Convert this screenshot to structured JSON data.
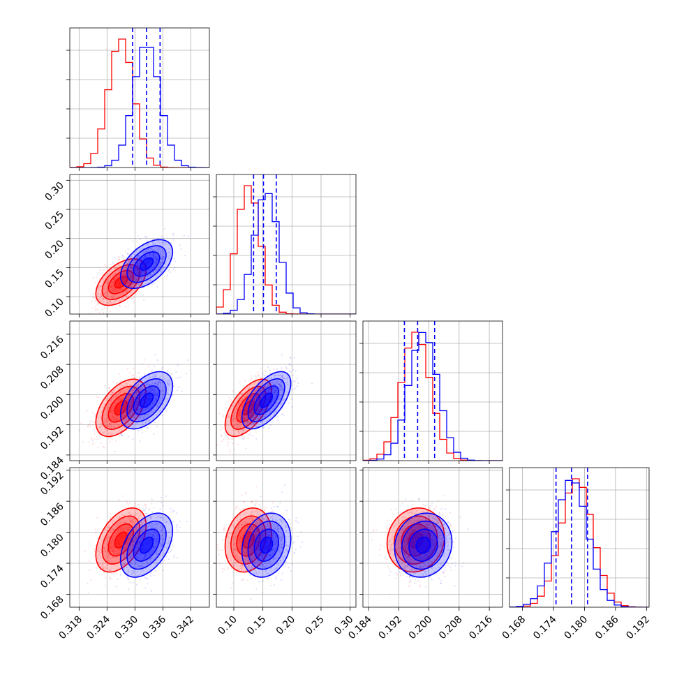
{
  "chart_data": {
    "type": "corner",
    "colors": {
      "set_a": "#0000ff",
      "set_b": "#ff0000"
    },
    "params": [
      {
        "range": [
          0.316,
          0.346
        ],
        "ticks": [
          0.318,
          0.324,
          0.33,
          0.336,
          0.342
        ],
        "tick_labels": [
          "0.318",
          "0.324",
          "0.330",
          "0.336",
          "0.342"
        ]
      },
      {
        "range": [
          0.07,
          0.31
        ],
        "ticks": [
          0.1,
          0.15,
          0.2,
          0.25,
          0.3
        ],
        "tick_labels": [
          "0.10",
          "0.15",
          "0.20",
          "0.25",
          "0.30"
        ]
      },
      {
        "range": [
          0.1825,
          0.2195
        ],
        "ticks": [
          0.184,
          0.192,
          0.2,
          0.208,
          0.216
        ],
        "tick_labels": [
          "0.184",
          "0.192",
          "0.200",
          "0.208",
          "0.216"
        ]
      },
      {
        "range": [
          0.1655,
          0.1925
        ],
        "ticks": [
          0.168,
          0.174,
          0.18,
          0.186,
          0.192
        ],
        "tick_labels": [
          "0.168",
          "0.174",
          "0.180",
          "0.186",
          "0.192"
        ]
      }
    ],
    "series": [
      {
        "key": "set_a",
        "color": "#0000ff",
        "mean": [
          0.3325,
          0.156,
          0.1985,
          0.1775
        ],
        "std": [
          0.0028,
          0.021,
          0.0038,
          0.0031
        ],
        "quantiles": [
          [
            0.3295,
            0.3325,
            0.3354
          ],
          [
            0.134,
            0.151,
            0.173
          ],
          [
            0.1935,
            0.197,
            0.2015
          ],
          [
            0.1745,
            0.1775,
            0.1806
          ]
        ],
        "corr": {
          "1-0": 0.5,
          "2-0": 0.5,
          "2-1": 0.6,
          "3-0": 0.45,
          "3-1": 0.2,
          "3-2": 0.1
        }
      },
      {
        "key": "set_b",
        "color": "#ff0000",
        "mean": [
          0.327,
          0.125,
          0.1965,
          0.1785
        ],
        "std": [
          0.0027,
          0.02,
          0.0038,
          0.0031
        ],
        "quantiles": [],
        "corr": {
          "1-0": 0.5,
          "2-0": 0.5,
          "2-1": 0.6,
          "3-0": 0.45,
          "3-1": 0.2,
          "3-2": 0.1
        }
      }
    ]
  }
}
